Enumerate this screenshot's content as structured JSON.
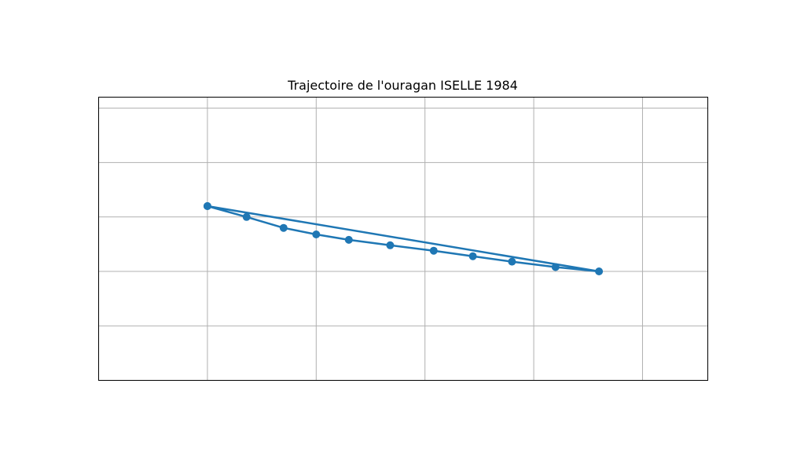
{
  "chart_data": {
    "type": "line",
    "title": "Trajectoire de l'ouragan ISELLE 1984",
    "xlabel": "",
    "ylabel": "",
    "grid": true,
    "xlim": [
      0,
      28
    ],
    "ylim": [
      0,
      26
    ],
    "gridlines_x": [
      5,
      10,
      15,
      20,
      25
    ],
    "gridlines_y": [
      5,
      10,
      15,
      20,
      25
    ],
    "series": [
      {
        "x": [
          5.0,
          6.8,
          8.5,
          10.0,
          11.5,
          13.4,
          15.4,
          17.2,
          19.0,
          21.0,
          23.0,
          5.0
        ],
        "y": [
          16.0,
          15.0,
          14.0,
          13.4,
          12.9,
          12.4,
          11.9,
          11.4,
          10.9,
          10.4,
          10.0,
          16.0
        ],
        "color": "#1f77b4"
      }
    ]
  }
}
